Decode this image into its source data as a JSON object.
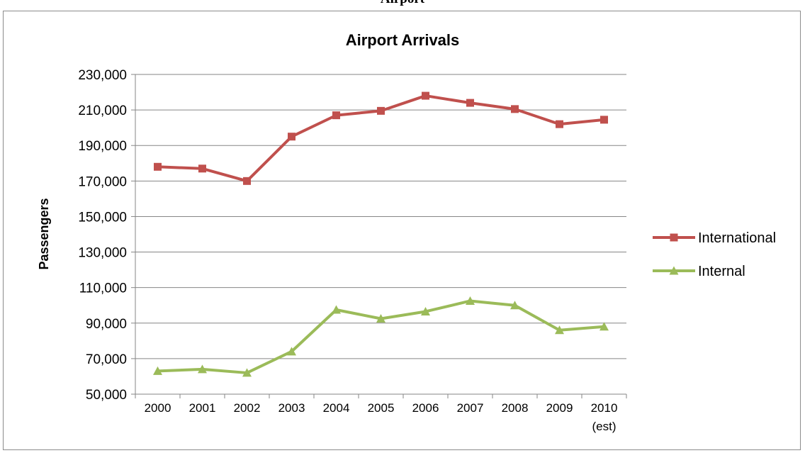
{
  "page_caption": "Airport",
  "chart_data": {
    "type": "line",
    "title": "Airport Arrivals",
    "xlabel": "",
    "ylabel": "Passengers",
    "categories": [
      [
        "2000"
      ],
      [
        "2001"
      ],
      [
        "2002"
      ],
      [
        "2003"
      ],
      [
        "2004"
      ],
      [
        "2005"
      ],
      [
        "2006"
      ],
      [
        "2007"
      ],
      [
        "2008"
      ],
      [
        "2009"
      ],
      [
        "2010",
        "(est)"
      ]
    ],
    "ylim": [
      50000,
      230000
    ],
    "yticks": [
      50000,
      70000,
      90000,
      110000,
      130000,
      150000,
      170000,
      190000,
      210000,
      230000
    ],
    "ytick_labels": [
      "50,000",
      "70,000",
      "90,000",
      "110,000",
      "130,000",
      "150,000",
      "170,000",
      "190,000",
      "210,000",
      "230,000"
    ],
    "grid": true,
    "legend_position": "right",
    "series": [
      {
        "name": "International",
        "color": "#c0504d",
        "marker": "square",
        "values": [
          178000,
          177000,
          170000,
          195000,
          207000,
          209500,
          218000,
          214000,
          210500,
          202000,
          204500
        ]
      },
      {
        "name": "Internal",
        "color": "#9bbb59",
        "marker": "triangle",
        "values": [
          63000,
          64000,
          62000,
          74000,
          97500,
          92500,
          96500,
          102500,
          100000,
          86000,
          88000
        ]
      }
    ]
  }
}
